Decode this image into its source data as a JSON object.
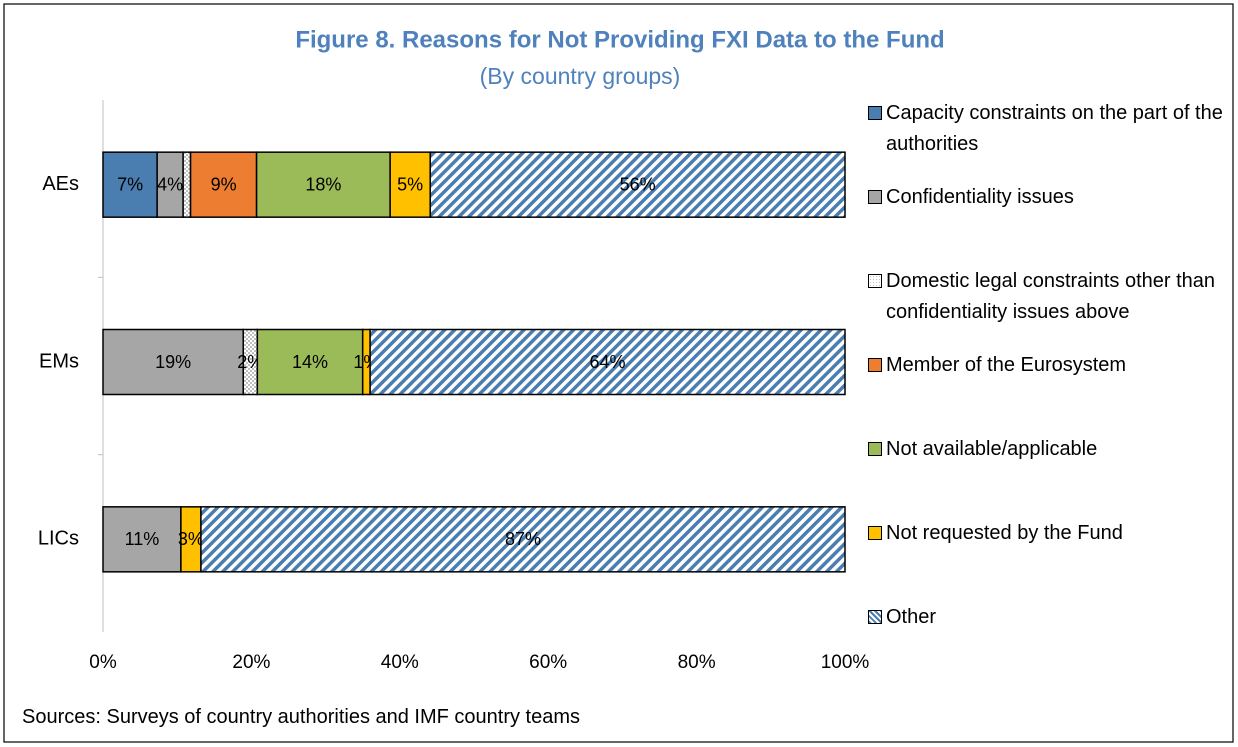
{
  "chart_data": {
    "type": "stacked_barh",
    "title": "Figure 8. Reasons for Not Providing FXI Data to the Fund",
    "subtitle": "(By country groups)",
    "source": "Sources: Surveys of country authorities and IMF country teams",
    "categories": [
      "AEs",
      "EMs",
      "LICs"
    ],
    "series": [
      {
        "name": "Capacity constraints on the part of the authorities",
        "color": "#4a7eb0",
        "values": [
          7.3,
          0,
          0
        ],
        "value_labels": [
          "7%",
          null,
          null
        ]
      },
      {
        "name": "Confidentiality issues",
        "color": "#a6a6a6",
        "values": [
          3.5,
          18.9,
          10.5
        ],
        "value_labels": [
          "4%",
          "19%",
          "11%"
        ]
      },
      {
        "name": "Domestic legal constraints other than confidentiality issues above",
        "color": "#bfbfbf",
        "pattern": "dots",
        "values": [
          1,
          1.9,
          0
        ],
        "value_labels": [
          null,
          "2%",
          null
        ]
      },
      {
        "name": "Member of the Eurosystem",
        "color": "#ed7d31",
        "values": [
          8.9,
          0,
          0
        ],
        "value_labels": [
          "9%",
          null,
          null
        ]
      },
      {
        "name": "Not available/applicable",
        "color": "#9bbb59",
        "values": [
          18,
          14.2,
          0
        ],
        "value_labels": [
          "18%",
          "14%",
          null
        ]
      },
      {
        "name": "Not requested by the Fund",
        "color": "#ffc000",
        "values": [
          5.4,
          1,
          2.7
        ],
        "value_labels": [
          "5%",
          "1%",
          "3%"
        ]
      },
      {
        "name": "Other",
        "color": "#4a7eb0",
        "pattern": "hatch",
        "values": [
          55.9,
          64,
          86.8
        ],
        "value_labels": [
          "56%",
          "64%",
          "87%"
        ]
      }
    ],
    "xlim": [
      0,
      100
    ],
    "xticks": [
      {
        "value": 0,
        "label": "0%"
      },
      {
        "value": 20,
        "label": "20%"
      },
      {
        "value": 40,
        "label": "40%"
      },
      {
        "value": 60,
        "label": "60%"
      },
      {
        "value": 80,
        "label": "80%"
      },
      {
        "value": 100,
        "label": "100%"
      }
    ],
    "legend": "right"
  }
}
